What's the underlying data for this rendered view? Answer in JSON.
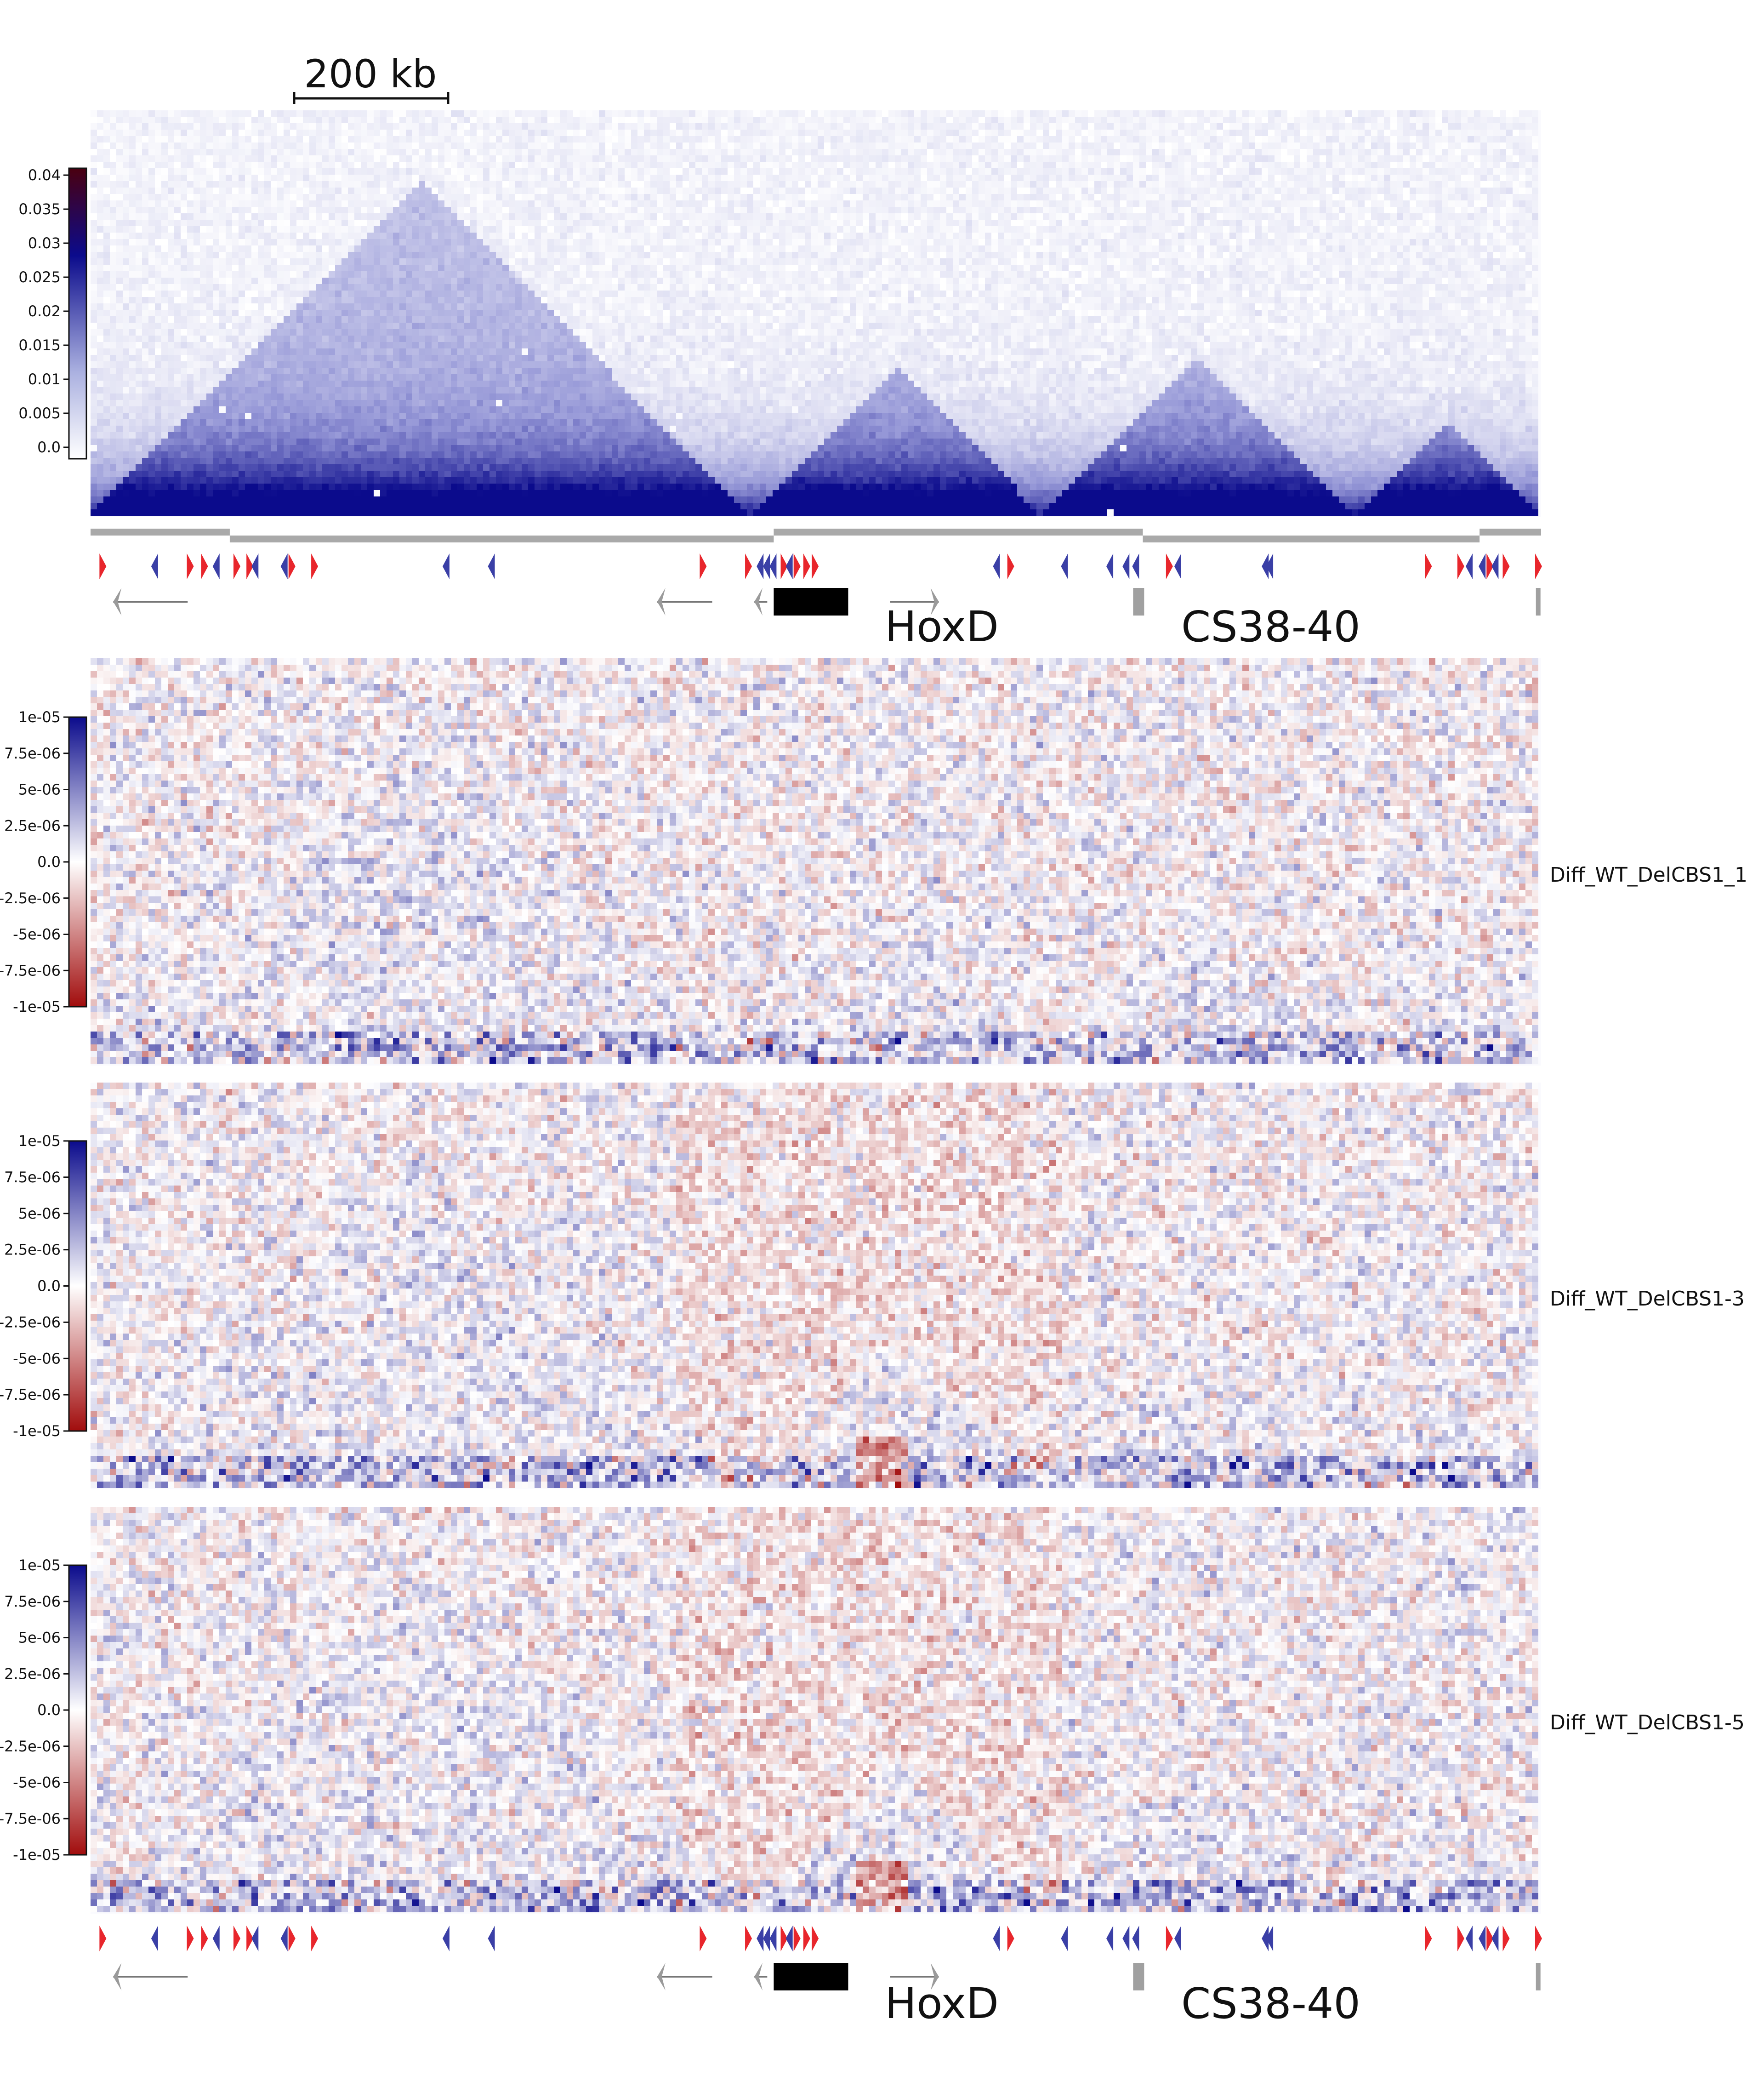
{
  "scale_bar": {
    "label": "200 kb"
  },
  "annotations": {
    "hoxd": "HoxD",
    "cs": "CS38-40"
  },
  "colors": {
    "blue_dark": "#0b0b8c",
    "blue_light": "#eef0fa",
    "red_dark": "#a10c0c",
    "gray_track": "#a9a9a9",
    "ctcf_forward": "#e8262c",
    "ctcf_reverse": "#3a3fa6",
    "gene_block": "#000000"
  },
  "chart_data": [
    {
      "type": "heatmap",
      "name": "",
      "colormap": "white-to-dark-blue",
      "colorbar": {
        "range": [
          0.0,
          0.04
        ],
        "ticks": [
          "0.04",
          "0.035",
          "0.03",
          "0.025",
          "0.02",
          "0.015",
          "0.01",
          "0.005",
          "0.0"
        ]
      },
      "domains_kb": [
        [
          0,
          1020
        ],
        [
          1020,
          1470
        ],
        [
          1470,
          1950
        ],
        [
          1950,
          2240
        ]
      ]
    },
    {
      "type": "heatmap",
      "name": "Diff_WT_DelCBS1_1",
      "colormap": "red-white-blue",
      "colorbar": {
        "range": [
          -1e-05,
          1e-05
        ],
        "ticks": [
          "1e-05",
          "7.5e-06",
          "5e-06",
          "2.5e-06",
          "0.0",
          "-2.5e-06",
          "-5e-06",
          "-7.5e-06",
          "-1e-05"
        ]
      }
    },
    {
      "type": "heatmap",
      "name": "Diff_WT_DelCBS1-3",
      "colormap": "red-white-blue",
      "colorbar": {
        "range": [
          -1e-05,
          1e-05
        ],
        "ticks": [
          "1e-05",
          "7.5e-06",
          "5e-06",
          "2.5e-06",
          "0.0",
          "-2.5e-06",
          "-5e-06",
          "-7.5e-06",
          "-1e-05"
        ]
      }
    },
    {
      "type": "heatmap",
      "name": "Diff_WT_DelCBS1-5",
      "colormap": "red-white-blue",
      "colorbar": {
        "range": [
          -1e-05,
          1e-05
        ],
        "ticks": [
          "1e-05",
          "7.5e-06",
          "5e-06",
          "2.5e-06",
          "0.0",
          "-2.5e-06",
          "-5e-06",
          "-7.5e-06",
          "-1e-05"
        ]
      }
    }
  ],
  "tad_track": [
    [
      0,
      215
    ],
    [
      215,
      1055
    ],
    [
      1055,
      1625
    ],
    [
      1625,
      2145
    ],
    [
      2145,
      2240
    ]
  ],
  "ctcf_sites": [
    {
      "kb": 18,
      "dir": "f"
    },
    {
      "kb": 100,
      "dir": "r"
    },
    {
      "kb": 153,
      "dir": "f"
    },
    {
      "kb": 175,
      "dir": "f"
    },
    {
      "kb": 195,
      "dir": "r"
    },
    {
      "kb": 225,
      "dir": "f"
    },
    {
      "kb": 245,
      "dir": "f"
    },
    {
      "kb": 255,
      "dir": "r"
    },
    {
      "kb": 300,
      "dir": "r"
    },
    {
      "kb": 310,
      "dir": "f"
    },
    {
      "kb": 345,
      "dir": "f"
    },
    {
      "kb": 550,
      "dir": "r"
    },
    {
      "kb": 620,
      "dir": "r"
    },
    {
      "kb": 945,
      "dir": "f"
    },
    {
      "kb": 1015,
      "dir": "f"
    },
    {
      "kb": 1035,
      "dir": "r"
    },
    {
      "kb": 1045,
      "dir": "r"
    },
    {
      "kb": 1055,
      "dir": "r"
    },
    {
      "kb": 1070,
      "dir": "f"
    },
    {
      "kb": 1080,
      "dir": "r"
    },
    {
      "kb": 1090,
      "dir": "f"
    },
    {
      "kb": 1105,
      "dir": "f"
    },
    {
      "kb": 1118,
      "dir": "f"
    },
    {
      "kb": 1400,
      "dir": "r"
    },
    {
      "kb": 1420,
      "dir": "f"
    },
    {
      "kb": 1505,
      "dir": "r"
    },
    {
      "kb": 1575,
      "dir": "r"
    },
    {
      "kb": 1600,
      "dir": "r"
    },
    {
      "kb": 1615,
      "dir": "r"
    },
    {
      "kb": 1665,
      "dir": "f"
    },
    {
      "kb": 1680,
      "dir": "r"
    },
    {
      "kb": 1815,
      "dir": "r"
    },
    {
      "kb": 1822,
      "dir": "r"
    },
    {
      "kb": 2065,
      "dir": "f"
    },
    {
      "kb": 2115,
      "dir": "f"
    },
    {
      "kb": 2130,
      "dir": "r"
    },
    {
      "kb": 2150,
      "dir": "r"
    },
    {
      "kb": 2160,
      "dir": "f"
    },
    {
      "kb": 2170,
      "dir": "r"
    },
    {
      "kb": 2185,
      "dir": "f"
    },
    {
      "kb": 2235,
      "dir": "f"
    }
  ]
}
